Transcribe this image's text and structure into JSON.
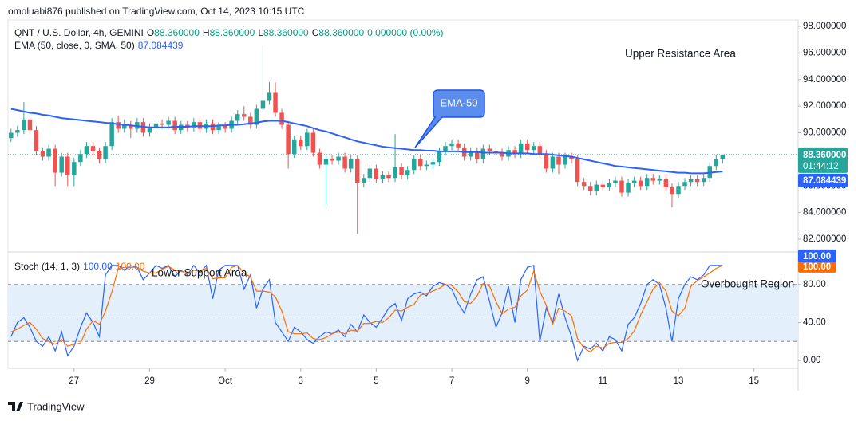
{
  "page": {
    "header": "omoluabi876 published on TradingView.com, Oct 14, 2023 10:15 UTC",
    "footer": "TradingView"
  },
  "chart_data": [
    {
      "type": "candlestick",
      "legend": {
        "symbol": "QNT / U.S. Dollar, 4h, GEMINI",
        "fields": [
          {
            "label": "O",
            "value": "88.360000"
          },
          {
            "label": "H",
            "value": "88.360000"
          },
          {
            "label": "L",
            "value": "88.360000"
          },
          {
            "label": "C",
            "value": "88.360000"
          }
        ],
        "change": "0.000000 (0.00%)"
      },
      "up_color": "#26a69a",
      "down_color": "#ef5350",
      "x": [
        25.33,
        25.5,
        25.67,
        25.83,
        26,
        26.17,
        26.33,
        26.5,
        26.67,
        26.83,
        27,
        27.17,
        27.33,
        27.5,
        27.67,
        27.83,
        28,
        28.17,
        28.33,
        28.5,
        28.67,
        28.83,
        29,
        29.17,
        29.33,
        29.5,
        29.67,
        29.83,
        30,
        30.17,
        30.33,
        30.5,
        30.67,
        30.83,
        31,
        31.17,
        31.33,
        31.5,
        31.67,
        31.83,
        32,
        32.17,
        32.33,
        32.5,
        32.67,
        32.83,
        33,
        33.17,
        33.33,
        33.5,
        33.67,
        33.83,
        34,
        34.17,
        34.33,
        34.5,
        34.67,
        34.83,
        35,
        35.17,
        35.33,
        35.5,
        35.67,
        35.83,
        36,
        36.17,
        36.33,
        36.5,
        36.67,
        36.83,
        37,
        37.17,
        37.33,
        37.5,
        37.67,
        37.83,
        38,
        38.17,
        38.33,
        38.5,
        38.67,
        38.83,
        39,
        39.17,
        39.33,
        39.5,
        39.67,
        39.83,
        40,
        40.17,
        40.33,
        40.5,
        40.67,
        40.83,
        41,
        41.17,
        41.33,
        41.5,
        41.67,
        41.83,
        42,
        42.17,
        42.33,
        42.5,
        42.67,
        42.83,
        43,
        43.17,
        43.33,
        43.5,
        43.67,
        43.83,
        44,
        44.17
      ],
      "open": [
        89.6,
        90.0,
        90.2,
        91.0,
        90.2,
        88.6,
        88.2,
        88.8,
        87.0,
        88.2,
        86.8,
        87.8,
        88.4,
        89.0,
        88.6,
        88.0,
        89.0,
        90.8,
        90.3,
        90.6,
        90.3,
        90.8,
        90.0,
        90.4,
        90.7,
        90.6,
        90.9,
        90.2,
        90.6,
        90.4,
        90.8,
        90.3,
        90.7,
        90.2,
        90.5,
        90.3,
        90.9,
        91.4,
        91.2,
        90.6,
        91.8,
        92.4,
        93.0,
        91.5,
        90.6,
        88.4,
        89.5,
        89.0,
        90.0,
        88.5,
        87.6,
        88.0,
        87.9,
        88.2,
        87.3,
        88.0,
        86.2,
        86.6,
        87.3,
        86.5,
        86.8,
        86.6,
        87.4,
        86.8,
        87.2,
        88.0,
        87.5,
        87.6,
        87.8,
        88.6,
        89.0,
        89.2,
        88.9,
        88.2,
        88.6,
        88.0,
        88.8,
        88.6,
        88.5,
        88.2,
        88.7,
        88.4,
        89.2,
        88.7,
        89.0,
        88.4,
        87.3,
        88.2,
        87.6,
        88.2,
        88.0,
        86.3,
        86.0,
        85.6,
        86.1,
        85.9,
        86.2,
        86.4,
        85.5,
        86.2,
        86.4,
        86.0,
        86.6,
        86.4,
        86.5,
        85.9,
        85.4,
        86.0,
        86.3,
        86.5,
        86.3,
        86.6,
        87.5,
        88.0
      ],
      "high": [
        90.3,
        90.5,
        92.3,
        91.3,
        90.5,
        88.9,
        89.1,
        89.1,
        88.5,
        88.5,
        88.1,
        88.7,
        89.3,
        89.3,
        88.9,
        89.3,
        91.1,
        91.3,
        91.0,
        90.9,
        91.1,
        91.1,
        90.7,
        91.0,
        91.0,
        91.2,
        91.2,
        90.9,
        90.9,
        91.1,
        91.1,
        91.0,
        91.0,
        90.8,
        90.8,
        91.2,
        91.7,
        92.0,
        91.5,
        92.1,
        96.6,
        93.8,
        93.8,
        91.8,
        90.9,
        89.8,
        89.8,
        90.3,
        90.3,
        88.8,
        88.3,
        88.3,
        88.5,
        88.5,
        88.3,
        88.3,
        86.9,
        87.6,
        87.6,
        87.1,
        87.1,
        89.9,
        87.7,
        87.5,
        88.3,
        88.3,
        87.9,
        88.1,
        88.9,
        89.3,
        89.5,
        89.5,
        89.2,
        88.9,
        88.9,
        89.1,
        89.1,
        88.9,
        88.8,
        89.0,
        89.0,
        89.5,
        89.5,
        89.3,
        89.3,
        88.7,
        88.5,
        88.5,
        88.5,
        88.5,
        88.3,
        86.6,
        86.3,
        86.4,
        86.4,
        86.5,
        86.7,
        86.7,
        86.5,
        86.7,
        86.7,
        86.9,
        86.9,
        86.8,
        86.8,
        86.2,
        86.3,
        86.6,
        86.8,
        86.8,
        86.9,
        87.8,
        88.3,
        88.36
      ],
      "low": [
        89.3,
        89.7,
        89.9,
        89.9,
        88.3,
        87.9,
        87.9,
        86.0,
        86.7,
        86.0,
        86.0,
        87.5,
        88.1,
        88.3,
        87.7,
        87.7,
        88.7,
        90.0,
        90.0,
        89.6,
        90.0,
        89.7,
        89.7,
        90.1,
        90.3,
        90.3,
        89.9,
        89.9,
        90.1,
        90.1,
        90.0,
        90.0,
        89.9,
        89.9,
        90.0,
        90.0,
        90.6,
        90.9,
        90.3,
        90.3,
        91.5,
        92.1,
        91.2,
        90.3,
        87.3,
        88.1,
        88.7,
        88.7,
        88.2,
        87.3,
        84.5,
        87.6,
        87.6,
        87.0,
        87.0,
        82.4,
        85.9,
        86.3,
        86.2,
        86.2,
        86.3,
        86.3,
        86.5,
        86.5,
        86.9,
        87.2,
        87.2,
        87.3,
        87.5,
        88.3,
        88.7,
        88.6,
        87.9,
        87.9,
        87.7,
        87.7,
        88.3,
        88.2,
        87.9,
        87.9,
        88.1,
        88.1,
        88.4,
        88.4,
        88.1,
        87.0,
        87.0,
        86.9,
        87.3,
        87.7,
        86.0,
        85.7,
        85.3,
        85.3,
        85.6,
        85.6,
        85.9,
        85.2,
        85.2,
        85.9,
        85.7,
        85.7,
        86.1,
        86.1,
        85.6,
        84.4,
        85.1,
        85.7,
        86.0,
        86.0,
        86.0,
        86.3,
        87.2,
        87.7
      ],
      "close": [
        90.0,
        90.2,
        91.0,
        90.2,
        88.6,
        88.2,
        88.8,
        87.0,
        88.2,
        86.8,
        87.8,
        88.4,
        89.0,
        88.6,
        88.0,
        89.0,
        90.8,
        90.3,
        90.6,
        90.3,
        90.8,
        90.0,
        90.4,
        90.7,
        90.6,
        90.9,
        90.2,
        90.6,
        90.4,
        90.8,
        90.3,
        90.7,
        90.2,
        90.5,
        90.3,
        90.9,
        91.4,
        91.2,
        90.6,
        91.8,
        92.4,
        93.0,
        91.5,
        90.6,
        88.4,
        89.5,
        89.0,
        90.0,
        88.5,
        87.6,
        88.0,
        87.9,
        88.2,
        87.3,
        88.0,
        86.2,
        86.6,
        87.3,
        86.5,
        86.8,
        86.6,
        87.4,
        86.8,
        87.2,
        88.0,
        87.5,
        87.6,
        87.8,
        88.6,
        89.0,
        89.2,
        88.9,
        88.2,
        88.6,
        88.0,
        88.8,
        88.6,
        88.5,
        88.2,
        88.7,
        88.4,
        89.2,
        88.7,
        89.0,
        88.4,
        87.3,
        88.2,
        87.6,
        88.2,
        88.0,
        86.3,
        86.0,
        85.6,
        86.1,
        85.9,
        86.2,
        86.4,
        85.5,
        86.2,
        86.4,
        86.0,
        86.6,
        86.4,
        86.5,
        85.9,
        85.4,
        86.0,
        86.3,
        86.5,
        86.3,
        86.6,
        87.5,
        88.0,
        88.36
      ],
      "last_price_label": "88.360000",
      "countdown": "01:44:12",
      "overlay": {
        "name": "EMA (50, close, 0, SMA, 50)",
        "color": "#2962ff",
        "value_label": "87.084439",
        "values": [
          91.8,
          91.7,
          91.6,
          91.5,
          91.45,
          91.35,
          91.3,
          91.2,
          91.1,
          91.05,
          91.0,
          90.95,
          90.9,
          90.85,
          90.8,
          90.75,
          90.7,
          90.65,
          90.6,
          90.55,
          90.5,
          90.45,
          90.4,
          90.4,
          90.4,
          90.4,
          90.45,
          90.45,
          90.45,
          90.5,
          90.5,
          90.5,
          90.5,
          90.55,
          90.55,
          90.6,
          90.6,
          90.65,
          90.7,
          90.75,
          90.85,
          90.9,
          90.9,
          90.9,
          90.8,
          90.7,
          90.6,
          90.5,
          90.35,
          90.2,
          90.1,
          89.95,
          89.8,
          89.65,
          89.5,
          89.35,
          89.25,
          89.15,
          89.05,
          88.95,
          88.9,
          88.85,
          88.8,
          88.75,
          88.7,
          88.7,
          88.65,
          88.65,
          88.6,
          88.6,
          88.6,
          88.6,
          88.55,
          88.55,
          88.55,
          88.5,
          88.5,
          88.5,
          88.5,
          88.45,
          88.45,
          88.45,
          88.45,
          88.4,
          88.4,
          88.4,
          88.35,
          88.3,
          88.25,
          88.2,
          88.1,
          88.0,
          87.9,
          87.8,
          87.7,
          87.6,
          87.5,
          87.45,
          87.4,
          87.35,
          87.3,
          87.25,
          87.2,
          87.15,
          87.1,
          87.05,
          87.0,
          87.0,
          86.95,
          86.95,
          86.95,
          87.0,
          87.05,
          87.084439
        ]
      },
      "annotations": [
        "Upper Resistance Area",
        "EMA-50"
      ],
      "xlim": [
        25.25,
        46.17
      ],
      "xticks": [
        27,
        29,
        {
          "value": 31,
          "label": "Oct"
        },
        {
          "value": 33,
          "label": "3"
        },
        {
          "value": 35,
          "label": "5"
        },
        {
          "value": 37,
          "label": "7"
        },
        {
          "value": 39,
          "label": "9"
        },
        {
          "value": 41,
          "label": "11"
        },
        {
          "value": 43,
          "label": "13"
        },
        {
          "value": 45,
          "label": "15"
        }
      ],
      "ylim": [
        81.1,
        98.48
      ],
      "yticks": [
        {
          "value": 82,
          "label": "82.000000"
        },
        {
          "value": 84,
          "label": "84.000000"
        },
        {
          "value": 86,
          "label": "86.000000"
        },
        {
          "value": 88,
          "label": "88.000000"
        },
        {
          "value": 90,
          "label": "90.000000"
        },
        {
          "value": 92,
          "label": "92.000000"
        },
        {
          "value": 94,
          "label": "94.000000"
        },
        {
          "value": 96,
          "label": "96.000000"
        },
        {
          "value": 98,
          "label": "98.000000"
        }
      ],
      "grid": false
    },
    {
      "type": "line",
      "legend_title": "Stoch (14, 1, 3)",
      "series": [
        {
          "color": "#2962ff",
          "value_label": "100.00",
          "values": [
            25,
            40,
            45,
            35,
            20,
            15,
            25,
            10,
            30,
            5,
            15,
            35,
            50,
            40,
            25,
            90,
            100,
            100,
            95,
            100,
            98,
            85,
            92,
            100,
            97,
            100,
            88,
            95,
            90,
            100,
            92,
            100,
            65,
            95,
            100,
            100,
            100,
            75,
            90,
            55,
            75,
            85,
            40,
            30,
            20,
            35,
            30,
            22,
            18,
            25,
            30,
            28,
            32,
            25,
            38,
            30,
            48,
            40,
            35,
            45,
            55,
            60,
            42,
            65,
            70,
            72,
            68,
            78,
            82,
            80,
            75,
            60,
            50,
            70,
            85,
            88,
            62,
            35,
            50,
            78,
            40,
            85,
            98,
            100,
            20,
            55,
            40,
            70,
            45,
            25,
            0,
            15,
            12,
            18,
            10,
            25,
            22,
            10,
            38,
            45,
            60,
            80,
            85,
            80,
            55,
            20,
            65,
            80,
            88,
            85,
            90,
            100,
            100,
            100
          ]
        },
        {
          "color": "#ff6d00",
          "value_label": "100.00",
          "values": [
            30,
            33,
            37,
            40,
            33,
            23,
            20,
            17,
            22,
            15,
            17,
            18,
            33,
            42,
            38,
            52,
            72,
            97,
            98,
            98,
            98,
            94,
            92,
            92,
            96,
            99,
            95,
            94,
            91,
            95,
            94,
            97,
            86,
            87,
            87,
            98,
            100,
            92,
            88,
            73,
            73,
            72,
            67,
            52,
            30,
            28,
            28,
            29,
            23,
            22,
            24,
            28,
            30,
            28,
            32,
            31,
            39,
            39,
            41,
            40,
            45,
            53,
            52,
            56,
            59,
            69,
            70,
            73,
            76,
            80,
            79,
            72,
            62,
            60,
            68,
            81,
            78,
            62,
            49,
            54,
            56,
            68,
            74,
            94,
            73,
            58,
            38,
            55,
            52,
            47,
            23,
            13,
            9,
            15,
            13,
            18,
            19,
            19,
            23,
            31,
            48,
            62,
            75,
            82,
            73,
            52,
            47,
            55,
            78,
            84,
            88,
            92,
            97,
            100
          ]
        }
      ],
      "band": [
        20,
        80
      ],
      "hlines": [
        20,
        50,
        80
      ],
      "band_color": "#e3f0fc",
      "annotations": [
        "Lower Support Area",
        "Overbought Region"
      ],
      "ylim": [
        -8.3,
        112.5
      ],
      "yticks": [
        {
          "value": 0,
          "label": "0.00"
        },
        {
          "value": 40,
          "label": "40.00"
        },
        {
          "value": 80,
          "label": "80.00"
        }
      ],
      "grid": false
    }
  ]
}
